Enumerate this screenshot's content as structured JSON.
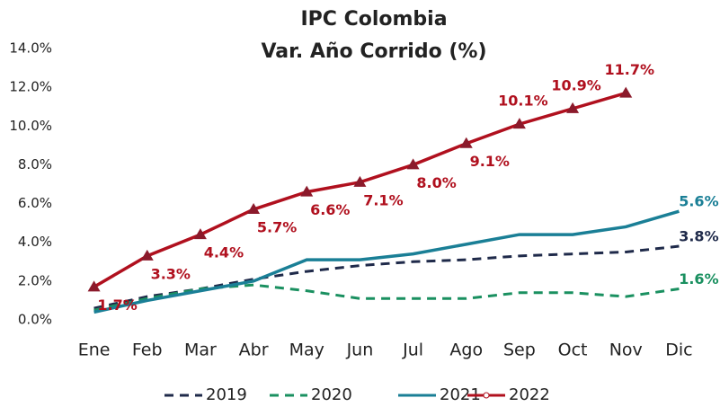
{
  "chart_data": {
    "type": "line",
    "title": "IPC Colombia",
    "subtitle": "Var. Año Corrido (%)",
    "categories": [
      "Ene",
      "Feb",
      "Mar",
      "Abr",
      "May",
      "Jun",
      "Jul",
      "Ago",
      "Sep",
      "Oct",
      "Nov",
      "Dic"
    ],
    "ylim": [
      0,
      14
    ],
    "yticks": [
      {
        "value": 0,
        "label": "0.0%"
      },
      {
        "value": 2,
        "label": "2.0%"
      },
      {
        "value": 4,
        "label": "4.0%"
      },
      {
        "value": 6,
        "label": "6.0%"
      },
      {
        "value": 8,
        "label": "8.0%"
      },
      {
        "value": 10,
        "label": "10.0%"
      },
      {
        "value": 12,
        "label": "12.0%"
      },
      {
        "value": 14,
        "label": "14.0%"
      }
    ],
    "grid": false,
    "legend": "bottom",
    "series": [
      {
        "name": "2019",
        "color": "#1f2a4a",
        "dash": true,
        "values": [
          0.6,
          1.2,
          1.6,
          2.1,
          2.5,
          2.8,
          3.0,
          3.1,
          3.3,
          3.4,
          3.5,
          3.8
        ],
        "value_labels": [
          null,
          null,
          null,
          null,
          null,
          null,
          null,
          null,
          null,
          null,
          null,
          "3.8%"
        ]
      },
      {
        "name": "2020",
        "color": "#1a9060",
        "dash": true,
        "values": [
          0.5,
          1.1,
          1.6,
          1.8,
          1.5,
          1.1,
          1.1,
          1.1,
          1.4,
          1.4,
          1.2,
          1.6
        ],
        "value_labels": [
          null,
          null,
          null,
          null,
          null,
          null,
          null,
          null,
          null,
          null,
          null,
          "1.6%"
        ]
      },
      {
        "name": "2021",
        "color": "#1a7f96",
        "dash": false,
        "values": [
          0.4,
          1.0,
          1.5,
          2.0,
          3.1,
          3.1,
          3.4,
          3.9,
          4.4,
          4.4,
          4.8,
          5.6
        ],
        "value_labels": [
          null,
          null,
          null,
          null,
          null,
          null,
          null,
          null,
          null,
          null,
          null,
          "5.6%"
        ]
      },
      {
        "name": "2022",
        "color": "#b0101e",
        "dash": false,
        "markers": true,
        "values": [
          1.7,
          3.3,
          4.4,
          5.7,
          6.6,
          7.1,
          8.0,
          9.1,
          10.1,
          10.9,
          11.7,
          null
        ],
        "value_labels": [
          "1.7%",
          "3.3%",
          "4.4%",
          "5.7%",
          "6.6%",
          "7.1%",
          "8.0%",
          "9.1%",
          "10.1%",
          "10.9%",
          "11.7%",
          null
        ]
      }
    ]
  }
}
